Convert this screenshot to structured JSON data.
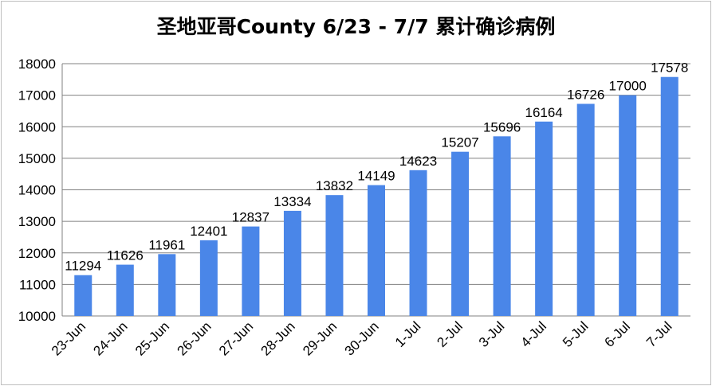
{
  "chart_data": {
    "type": "bar",
    "title": "圣地亚哥County 6/23 - 7/7 累计确诊病例",
    "xlabel": "",
    "ylabel": "",
    "categories": [
      "23-Jun",
      "24-Jun",
      "25-Jun",
      "26-Jun",
      "27-Jun",
      "28-Jun",
      "29-Jun",
      "30-Jun",
      "1-Jul",
      "2-Jul",
      "3-Jul",
      "4-Jul",
      "5-Jul",
      "6-Jul",
      "7-Jul"
    ],
    "values": [
      11294,
      11626,
      11961,
      12401,
      12837,
      13334,
      13832,
      14149,
      14623,
      15207,
      15696,
      16164,
      16726,
      17000,
      17578
    ],
    "ylim": [
      10000,
      18000
    ],
    "yticks": [
      10000,
      11000,
      12000,
      13000,
      14000,
      15000,
      16000,
      17000,
      18000
    ],
    "grid": true,
    "legend": "none",
    "bar_color": "#4a86e8",
    "grid_color": "#808080"
  }
}
